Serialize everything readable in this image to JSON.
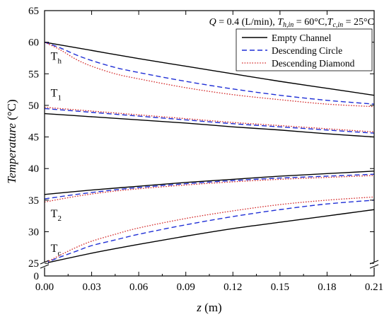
{
  "chart_data": {
    "type": "line",
    "annotation_parts": [
      {
        "text": "Q",
        "italic": true
      },
      {
        "text": " = 0.4 (L/min), ",
        "italic": false
      },
      {
        "text": "T",
        "italic": true
      },
      {
        "text": "h,in",
        "italic": true,
        "sub": true
      },
      {
        "text": " = 60°C,",
        "italic": false
      },
      {
        "text": "T",
        "italic": true
      },
      {
        "text": "c,in",
        "italic": true,
        "sub": true
      },
      {
        "text": " = 25°C",
        "italic": false
      }
    ],
    "xlabel": {
      "main": "z",
      "unit": " (m)"
    },
    "ylabel": {
      "main": "Temperature",
      "unit": " (°C)"
    },
    "xlim": [
      0,
      0.21
    ],
    "ylim": [
      23,
      65
    ],
    "axis_break": {
      "y_display": 24.5,
      "bottom_label": "0"
    },
    "xticks": [
      0,
      0.03,
      0.06,
      0.09,
      0.12,
      0.15,
      0.18,
      0.21
    ],
    "xtick_labels": [
      "0.00",
      "0.03",
      "0.06",
      "0.09",
      "0.12",
      "0.15",
      "0.18",
      "0.21"
    ],
    "yticks": [
      25,
      30,
      35,
      40,
      45,
      50,
      55,
      60,
      65
    ],
    "ytick_labels": [
      "25",
      "30",
      "35",
      "40",
      "45",
      "50",
      "55",
      "60",
      "65"
    ],
    "grid": false,
    "legend_position": "top-right",
    "curve_labels": [
      {
        "base": "T",
        "sub": "h",
        "x": 0.003,
        "y": 57.2
      },
      {
        "base": "T",
        "sub": "1",
        "x": 0.003,
        "y": 51.4
      },
      {
        "base": "T",
        "sub": "2",
        "x": 0.003,
        "y": 32.3
      },
      {
        "base": "T",
        "sub": "c",
        "x": 0.003,
        "y": 26.8
      }
    ],
    "series": [
      {
        "name": "Empty Channel",
        "color": "#000000",
        "dash": "solid",
        "group": "Th",
        "x": [
          0,
          0.03,
          0.06,
          0.09,
          0.12,
          0.15,
          0.18,
          0.21
        ],
        "y": [
          60.0,
          58.7,
          57.4,
          56.2,
          55.0,
          53.8,
          52.7,
          51.6
        ]
      },
      {
        "name": "Descending Circle",
        "color": "#1f2fd6",
        "dash": "dashed",
        "group": "Th",
        "x": [
          0,
          0.01,
          0.02,
          0.03,
          0.045,
          0.06,
          0.09,
          0.12,
          0.15,
          0.18,
          0.21
        ],
        "y": [
          60.0,
          59.1,
          58.0,
          57.1,
          56.0,
          55.2,
          53.8,
          52.6,
          51.6,
          50.8,
          50.2
        ]
      },
      {
        "name": "Descending Diamond",
        "color": "#d42a2a",
        "dash": "dotted",
        "group": "Th",
        "x": [
          0,
          0.01,
          0.02,
          0.03,
          0.045,
          0.06,
          0.09,
          0.12,
          0.15,
          0.18,
          0.21
        ],
        "y": [
          60.0,
          58.8,
          57.3,
          56.2,
          55.0,
          54.2,
          52.8,
          51.7,
          50.9,
          50.2,
          49.8
        ]
      },
      {
        "name": "Empty Channel",
        "color": "#000000",
        "dash": "solid",
        "group": "T1",
        "x": [
          0,
          0.03,
          0.06,
          0.09,
          0.12,
          0.15,
          0.18,
          0.21
        ],
        "y": [
          48.7,
          48.2,
          47.7,
          47.2,
          46.6,
          46.1,
          45.5,
          45.0
        ]
      },
      {
        "name": "Descending Circle",
        "color": "#1f2fd6",
        "dash": "dashed",
        "group": "T1",
        "x": [
          0,
          0.03,
          0.06,
          0.09,
          0.12,
          0.15,
          0.18,
          0.21
        ],
        "y": [
          49.5,
          48.9,
          48.3,
          47.7,
          47.1,
          46.6,
          46.1,
          45.6
        ]
      },
      {
        "name": "Descending Diamond",
        "color": "#d42a2a",
        "dash": "dotted",
        "group": "T1",
        "x": [
          0,
          0.03,
          0.06,
          0.09,
          0.12,
          0.15,
          0.18,
          0.21
        ],
        "y": [
          49.7,
          49.1,
          48.5,
          47.9,
          47.3,
          46.8,
          46.3,
          45.8
        ]
      },
      {
        "name": "Empty Channel",
        "color": "#000000",
        "dash": "solid",
        "group": "T2",
        "x": [
          0,
          0.03,
          0.06,
          0.09,
          0.12,
          0.15,
          0.18,
          0.21
        ],
        "y": [
          35.9,
          36.6,
          37.2,
          37.8,
          38.3,
          38.8,
          39.2,
          39.6
        ]
      },
      {
        "name": "Descending Circle",
        "color": "#1f2fd6",
        "dash": "dashed",
        "group": "T2",
        "x": [
          0,
          0.02,
          0.04,
          0.06,
          0.09,
          0.12,
          0.15,
          0.18,
          0.21
        ],
        "y": [
          35.2,
          35.9,
          36.5,
          37.0,
          37.6,
          38.1,
          38.5,
          38.8,
          39.1
        ]
      },
      {
        "name": "Descending Diamond",
        "color": "#d42a2a",
        "dash": "dotted",
        "group": "T2",
        "x": [
          0,
          0.02,
          0.04,
          0.06,
          0.09,
          0.12,
          0.15,
          0.18,
          0.21
        ],
        "y": [
          34.7,
          35.6,
          36.3,
          36.8,
          37.4,
          37.9,
          38.3,
          38.6,
          38.9
        ]
      },
      {
        "name": "Empty Channel",
        "color": "#000000",
        "dash": "solid",
        "group": "Tc",
        "x": [
          0,
          0.03,
          0.06,
          0.09,
          0.12,
          0.15,
          0.18,
          0.21
        ],
        "y": [
          25.0,
          26.6,
          28.0,
          29.3,
          30.5,
          31.5,
          32.5,
          33.5
        ]
      },
      {
        "name": "Descending Circle",
        "color": "#1f2fd6",
        "dash": "dashed",
        "group": "Tc",
        "x": [
          0,
          0.01,
          0.02,
          0.03,
          0.045,
          0.06,
          0.09,
          0.12,
          0.15,
          0.18,
          0.21
        ],
        "y": [
          25.0,
          26.0,
          26.9,
          27.8,
          28.7,
          29.6,
          31.1,
          32.4,
          33.5,
          34.4,
          35.0
        ]
      },
      {
        "name": "Descending Diamond",
        "color": "#d42a2a",
        "dash": "dotted",
        "group": "Tc",
        "x": [
          0,
          0.01,
          0.02,
          0.03,
          0.045,
          0.06,
          0.09,
          0.12,
          0.15,
          0.18,
          0.21
        ],
        "y": [
          25.0,
          26.3,
          27.5,
          28.5,
          29.6,
          30.6,
          32.1,
          33.3,
          34.3,
          35.0,
          35.5
        ]
      }
    ],
    "legend": [
      {
        "label": "Empty Channel",
        "color": "#000000",
        "dash": "solid"
      },
      {
        "label": "Descending Circle",
        "color": "#1f2fd6",
        "dash": "dashed"
      },
      {
        "label": "Descending Diamond",
        "color": "#d42a2a",
        "dash": "dotted"
      }
    ]
  }
}
